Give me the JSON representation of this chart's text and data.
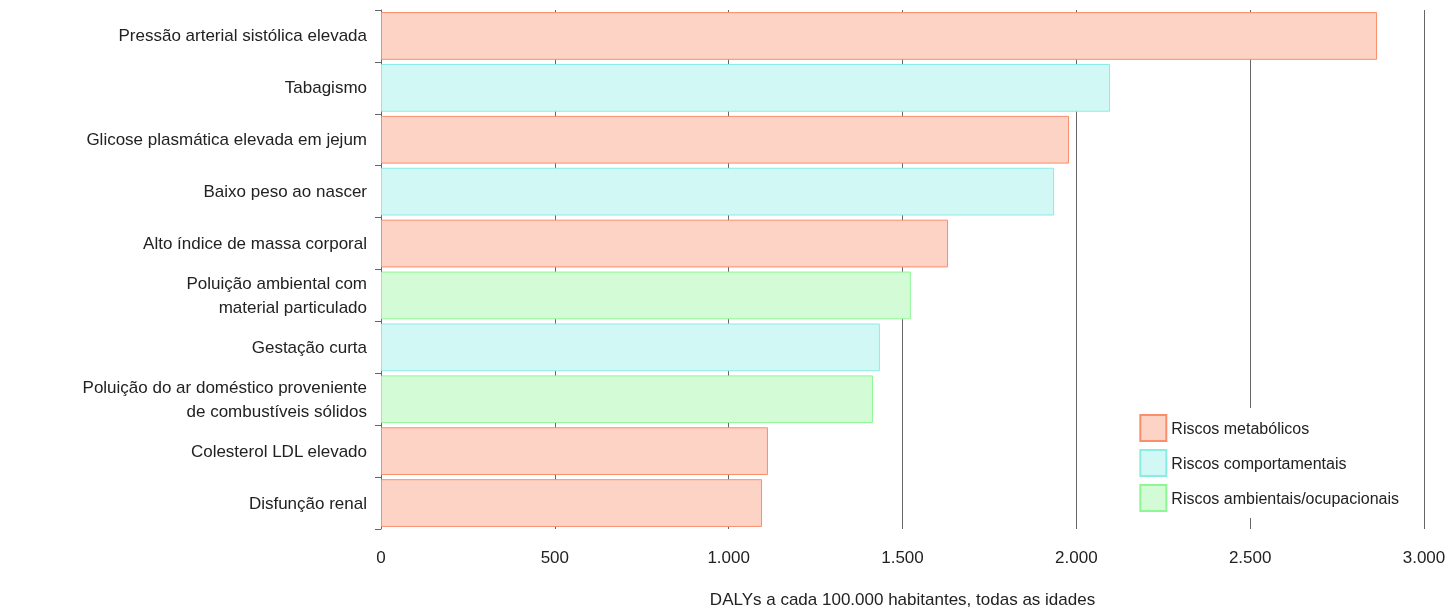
{
  "chart_data": {
    "type": "bar",
    "orientation": "horizontal",
    "categories": [
      "Pressão arterial sistólica elevada",
      "Tabagismo",
      "Glicose plasmática elevada em jejum",
      "Baixo peso ao nascer",
      "Alto índice de massa corporal",
      "Poluição ambiental com\nmaterial particulado",
      "Gestação curta",
      "Poluição do ar doméstico proveniente\nde combustíveis sólidos",
      "Colesterol LDL elevado",
      "Disfunção renal"
    ],
    "series": [
      {
        "name": "Riscos metabólicos",
        "color": "#fdd3c6",
        "values": [
          2865,
          null,
          1979,
          null,
          1631,
          null,
          null,
          null,
          1113,
          1096
        ]
      },
      {
        "name": "Riscos comportamentais",
        "color": "#d2f8f5",
        "values": [
          null,
          2097,
          null,
          1936,
          null,
          null,
          1435,
          null,
          null,
          null
        ]
      },
      {
        "name": "Riscos ambientais/ocupacionais",
        "color": "#d3fcd6",
        "values": [
          null,
          null,
          null,
          null,
          null,
          1524,
          null,
          1415,
          null,
          null
        ]
      }
    ],
    "xlim": [
      0,
      3000
    ],
    "xticks": [
      0,
      500,
      {
        "value": 1000,
        "label": "1.000"
      },
      {
        "value": 1500,
        "label": "1.500"
      },
      {
        "value": 2000,
        "label": "2.000"
      },
      {
        "value": 2500,
        "label": "2.500"
      },
      {
        "value": 3000,
        "label": "3.000"
      }
    ],
    "xlabel": "DALYs a cada 100.000 habitantes, todas as idades",
    "grid": "x",
    "legend": "bottom right"
  }
}
